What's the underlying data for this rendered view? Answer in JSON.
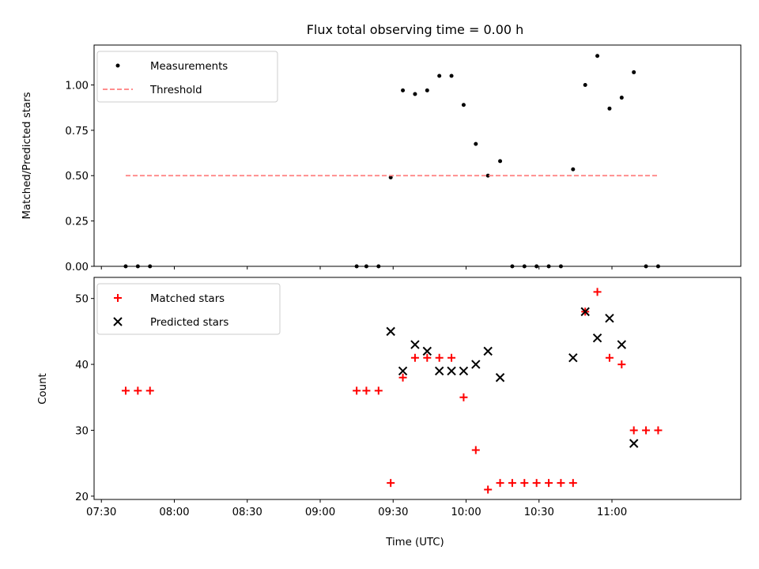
{
  "chart_data": [
    {
      "type": "scatter",
      "title": "Flux total observing time = 0.00 h",
      "ylabel": "Matched/Predicted stars",
      "xlabel": "",
      "xlim": [
        "07:27",
        "11:53"
      ],
      "ylim": [
        0,
        1.22
      ],
      "yticks": [
        "0.00",
        "0.25",
        "0.50",
        "0.75",
        "1.00"
      ],
      "grid": false,
      "legend_position": "top-left",
      "series": [
        {
          "name": "Measurements",
          "marker": "dot",
          "color": "#000000",
          "points": [
            [
              "07:40",
              0.0
            ],
            [
              "07:45",
              0.0
            ],
            [
              "07:50",
              0.0
            ],
            [
              "09:15",
              0.0
            ],
            [
              "09:19",
              0.0
            ],
            [
              "09:24",
              0.0
            ],
            [
              "09:29",
              0.49
            ],
            [
              "09:34",
              0.97
            ],
            [
              "09:39",
              0.95
            ],
            [
              "09:44",
              0.97
            ],
            [
              "09:49",
              1.05
            ],
            [
              "09:54",
              1.05
            ],
            [
              "09:59",
              0.89
            ],
            [
              "10:04",
              0.675
            ],
            [
              "10:09",
              0.5
            ],
            [
              "10:14",
              0.58
            ],
            [
              "10:19",
              0.0
            ],
            [
              "10:24",
              0.0
            ],
            [
              "10:29",
              0.0
            ],
            [
              "10:34",
              0.0
            ],
            [
              "10:39",
              0.0
            ],
            [
              "10:44",
              0.535
            ],
            [
              "10:49",
              1.0
            ],
            [
              "10:54",
              1.16
            ],
            [
              "10:59",
              0.87
            ],
            [
              "11:04",
              0.93
            ],
            [
              "11:09",
              1.07
            ],
            [
              "11:14",
              0.0
            ],
            [
              "11:19",
              0.0
            ]
          ]
        },
        {
          "name": "Threshold",
          "marker": "dashed-line",
          "color": "#ff7f7f",
          "points": [
            [
              "07:40",
              0.5
            ],
            [
              "11:19",
              0.5
            ]
          ]
        }
      ]
    },
    {
      "type": "scatter",
      "title": "",
      "ylabel": "Count",
      "xlabel": "Time (UTC)",
      "xlim": [
        "07:27",
        "11:53"
      ],
      "ylim": [
        19.5,
        53.2
      ],
      "yticks": [
        "20",
        "30",
        "40",
        "50"
      ],
      "xticks": [
        "07:30",
        "08:00",
        "08:30",
        "09:00",
        "09:30",
        "10:00",
        "10:30",
        "11:00"
      ],
      "grid": false,
      "legend_position": "top-left",
      "series": [
        {
          "name": "Matched stars",
          "marker": "plus",
          "color": "#ff0000",
          "points": [
            [
              "07:40",
              36
            ],
            [
              "07:45",
              36
            ],
            [
              "07:50",
              36
            ],
            [
              "09:15",
              36
            ],
            [
              "09:19",
              36
            ],
            [
              "09:24",
              36
            ],
            [
              "09:29",
              22
            ],
            [
              "09:34",
              38
            ],
            [
              "09:39",
              41
            ],
            [
              "09:44",
              41
            ],
            [
              "09:49",
              41
            ],
            [
              "09:54",
              41
            ],
            [
              "09:59",
              35
            ],
            [
              "10:04",
              27
            ],
            [
              "10:09",
              21
            ],
            [
              "10:14",
              22
            ],
            [
              "10:19",
              22
            ],
            [
              "10:24",
              22
            ],
            [
              "10:29",
              22
            ],
            [
              "10:34",
              22
            ],
            [
              "10:39",
              22
            ],
            [
              "10:44",
              22
            ],
            [
              "10:49",
              48
            ],
            [
              "10:54",
              51
            ],
            [
              "10:59",
              41
            ],
            [
              "11:04",
              40
            ],
            [
              "11:09",
              30
            ],
            [
              "11:14",
              30
            ],
            [
              "11:19",
              30
            ]
          ]
        },
        {
          "name": "Predicted stars",
          "marker": "x",
          "color": "#000000",
          "points": [
            [
              "09:29",
              45
            ],
            [
              "09:34",
              39
            ],
            [
              "09:39",
              43
            ],
            [
              "09:44",
              42
            ],
            [
              "09:49",
              39
            ],
            [
              "09:54",
              39
            ],
            [
              "09:59",
              39
            ],
            [
              "10:04",
              40
            ],
            [
              "10:09",
              42
            ],
            [
              "10:14",
              38
            ],
            [
              "10:44",
              41
            ],
            [
              "10:49",
              48
            ],
            [
              "10:54",
              44
            ],
            [
              "10:59",
              47
            ],
            [
              "11:04",
              43
            ],
            [
              "11:09",
              28
            ]
          ]
        }
      ]
    }
  ]
}
